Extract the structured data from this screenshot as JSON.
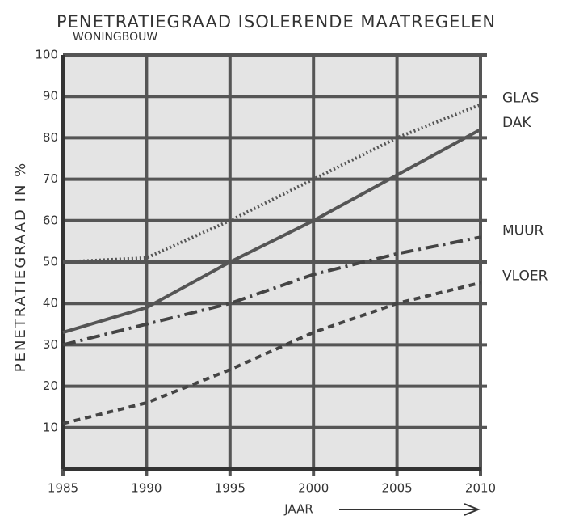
{
  "chart_data": {
    "type": "line",
    "title": "PENETRATIEGRAAD ISOLERENDE MAATREGELEN",
    "subtitle": "WONINGBOUW",
    "xlabel": "JAAR",
    "ylabel": "PENETRATIEGRAAD IN %",
    "x": [
      1985,
      1990,
      1995,
      2000,
      2005,
      2010
    ],
    "series": [
      {
        "name": "GLAS",
        "color": "#555555",
        "dash": "dotted",
        "values": [
          50,
          51,
          60,
          70,
          80,
          88
        ]
      },
      {
        "name": "DAK",
        "color": "#555555",
        "dash": "solid",
        "values": [
          33,
          39,
          50,
          60,
          71,
          82
        ]
      },
      {
        "name": "MUUR",
        "color": "#444444",
        "dash": "dashdot",
        "values": [
          30,
          35,
          40,
          47,
          52,
          56
        ]
      },
      {
        "name": "VLOER",
        "color": "#444444",
        "dash": "dashed",
        "values": [
          11,
          16,
          24,
          33,
          40,
          45
        ]
      }
    ],
    "xlim": [
      1985,
      2010
    ],
    "xticks": [
      1985,
      1990,
      1995,
      2000,
      2005,
      2010
    ],
    "ylim": [
      0,
      100
    ],
    "yticks": [
      10,
      20,
      30,
      40,
      50,
      60,
      70,
      80,
      90,
      100
    ],
    "grid": true
  }
}
